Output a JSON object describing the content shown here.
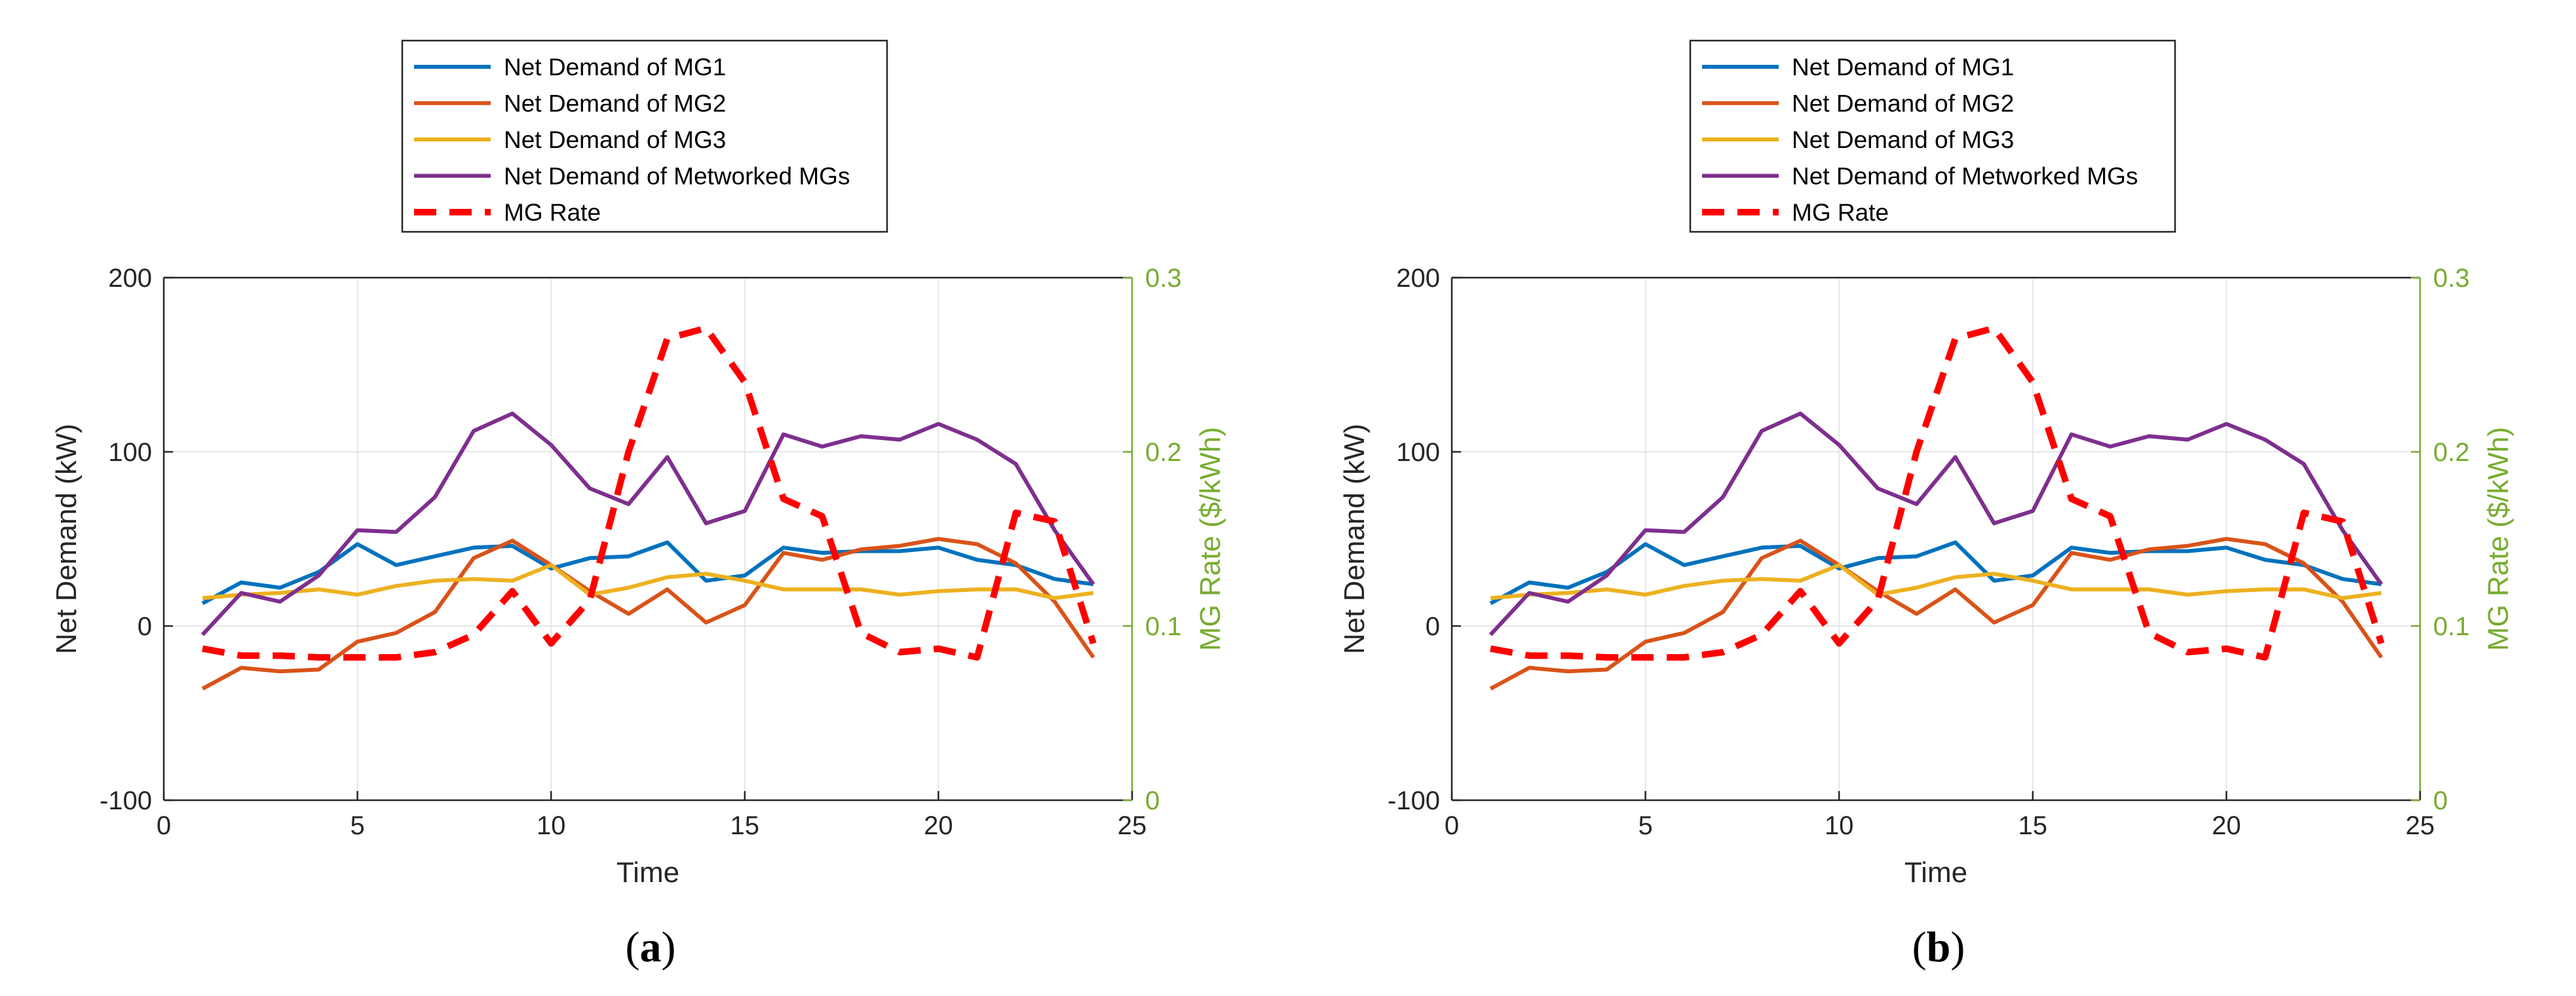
{
  "chart_data": [
    {
      "type": "line",
      "panel_label": "(a)",
      "panel_letter": "a",
      "xlabel": "Time",
      "ylabel": "Net Demand (kW)",
      "y2label": "MG Rate ($/kWh)",
      "xlim": [
        0,
        25
      ],
      "ylim": [
        -100,
        200
      ],
      "y2lim": [
        0,
        0.3
      ],
      "xticks": [
        0,
        5,
        10,
        15,
        20,
        25
      ],
      "yticks": [
        -100,
        0,
        100,
        200
      ],
      "y2ticks": [
        0,
        0.1,
        0.2,
        0.3
      ],
      "grid": true,
      "legend_position": "top-center",
      "x": [
        1,
        2,
        3,
        4,
        5,
        6,
        7,
        8,
        9,
        10,
        11,
        12,
        13,
        14,
        15,
        16,
        17,
        18,
        19,
        20,
        21,
        22,
        23,
        24
      ],
      "series": [
        {
          "name": "Net Demand of MG1",
          "color": "#0072bd",
          "axis": "left",
          "dashed": false,
          "values": [
            13,
            25,
            22,
            31,
            47,
            35,
            40,
            45,
            46,
            33,
            39,
            40,
            48,
            26,
            29,
            45,
            42,
            43,
            43,
            45,
            38,
            35,
            27,
            24
          ]
        },
        {
          "name": "Net Demand of MG2",
          "color": "#d95319",
          "axis": "left",
          "dashed": false,
          "values": [
            -36,
            -24,
            -26,
            -25,
            -9,
            -4,
            8,
            39,
            49,
            35,
            20,
            7,
            21,
            2,
            12,
            42,
            38,
            44,
            46,
            50,
            47,
            36,
            14,
            -18
          ]
        },
        {
          "name": "Net Demand of MG3",
          "color": "#edb120",
          "axis": "left",
          "dashed": false,
          "values": [
            16,
            18,
            19,
            21,
            18,
            23,
            26,
            27,
            26,
            35,
            18,
            22,
            28,
            30,
            26,
            21,
            21,
            21,
            18,
            20,
            21,
            21,
            16,
            19
          ]
        },
        {
          "name": "Net Demand of Metworked MGs",
          "color": "#7e2f8e",
          "axis": "left",
          "dashed": false,
          "values": [
            -5,
            19,
            14,
            29,
            55,
            54,
            74,
            112,
            122,
            104,
            79,
            70,
            97,
            59,
            66,
            110,
            103,
            109,
            107,
            116,
            107,
            93,
            55,
            24
          ]
        },
        {
          "name": "MG Rate",
          "color": "#ff0000",
          "axis": "right",
          "dashed": true,
          "values": [
            0.087,
            0.083,
            0.083,
            0.082,
            0.082,
            0.082,
            0.085,
            0.095,
            0.12,
            0.09,
            0.115,
            0.2,
            0.265,
            0.271,
            0.24,
            0.173,
            0.163,
            0.096,
            0.085,
            0.087,
            0.082,
            0.165,
            0.16,
            0.09
          ]
        }
      ]
    },
    {
      "type": "line",
      "panel_label": "(b)",
      "panel_letter": "b",
      "xlabel": "Time",
      "ylabel": "Net Demand (kW)",
      "y2label": "MG Rate ($/kWh)",
      "xlim": [
        0,
        25
      ],
      "ylim": [
        -100,
        200
      ],
      "y2lim": [
        0,
        0.3
      ],
      "xticks": [
        0,
        5,
        10,
        15,
        20,
        25
      ],
      "yticks": [
        -100,
        0,
        100,
        200
      ],
      "y2ticks": [
        0,
        0.1,
        0.2,
        0.3
      ],
      "grid": true,
      "legend_position": "top-center",
      "x": [
        1,
        2,
        3,
        4,
        5,
        6,
        7,
        8,
        9,
        10,
        11,
        12,
        13,
        14,
        15,
        16,
        17,
        18,
        19,
        20,
        21,
        22,
        23,
        24
      ],
      "series": [
        {
          "name": "Net Demand of MG1",
          "color": "#0072bd",
          "axis": "left",
          "dashed": false,
          "values": [
            13,
            25,
            22,
            31,
            47,
            35,
            40,
            45,
            46,
            33,
            39,
            40,
            48,
            26,
            29,
            45,
            42,
            43,
            43,
            45,
            38,
            35,
            27,
            24
          ]
        },
        {
          "name": "Net Demand of MG2",
          "color": "#d95319",
          "axis": "left",
          "dashed": false,
          "values": [
            -36,
            -24,
            -26,
            -25,
            -9,
            -4,
            8,
            39,
            49,
            35,
            20,
            7,
            21,
            2,
            12,
            42,
            38,
            44,
            46,
            50,
            47,
            36,
            14,
            -18
          ]
        },
        {
          "name": "Net Demand of MG3",
          "color": "#edb120",
          "axis": "left",
          "dashed": false,
          "values": [
            16,
            18,
            19,
            21,
            18,
            23,
            26,
            27,
            26,
            35,
            18,
            22,
            28,
            30,
            26,
            21,
            21,
            21,
            18,
            20,
            21,
            21,
            16,
            19
          ]
        },
        {
          "name": "Net Demand of Metworked MGs",
          "color": "#7e2f8e",
          "axis": "left",
          "dashed": false,
          "values": [
            -5,
            19,
            14,
            29,
            55,
            54,
            74,
            112,
            122,
            104,
            79,
            70,
            97,
            59,
            66,
            110,
            103,
            109,
            107,
            116,
            107,
            93,
            55,
            24
          ]
        },
        {
          "name": "MG Rate",
          "color": "#ff0000",
          "axis": "right",
          "dashed": true,
          "values": [
            0.087,
            0.083,
            0.083,
            0.082,
            0.082,
            0.082,
            0.085,
            0.095,
            0.12,
            0.09,
            0.115,
            0.2,
            0.265,
            0.271,
            0.24,
            0.173,
            0.163,
            0.096,
            0.085,
            0.087,
            0.082,
            0.165,
            0.16,
            0.09
          ]
        }
      ]
    }
  ]
}
